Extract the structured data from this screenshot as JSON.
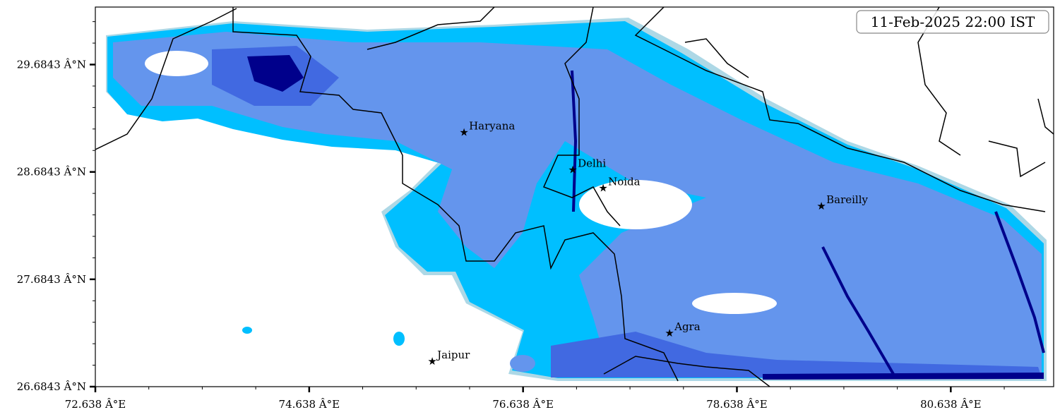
{
  "map": {
    "timestamp_label": "11-Feb-2025 22:00 IST",
    "extent": {
      "lon": [
        72.638,
        81.6
      ],
      "lat": [
        26.6843,
        30.22
      ]
    },
    "x_ticks": [
      {
        "value": 72.638,
        "label": "72.638 Â°E"
      },
      {
        "value": 74.638,
        "label": "74.638 Â°E"
      },
      {
        "value": 76.638,
        "label": "76.638 Â°E"
      },
      {
        "value": 78.638,
        "label": "78.638 Â°E"
      },
      {
        "value": 80.638,
        "label": "80.638 Â°E"
      }
    ],
    "y_ticks": [
      {
        "value": 26.6843,
        "label": "26.6843 Â°N"
      },
      {
        "value": 27.6843,
        "label": "27.6843 Â°N"
      },
      {
        "value": 28.6843,
        "label": "28.6843 Â°N"
      },
      {
        "value": 29.6843,
        "label": "29.6843 Â°N"
      }
    ],
    "minor_tick_step": 0.5,
    "cities": [
      {
        "name": "Haryana",
        "lon": 76.086,
        "lat": 29.053
      },
      {
        "name": "Delhi",
        "lon": 77.103,
        "lat": 28.704
      },
      {
        "name": "Noida",
        "lon": 77.387,
        "lat": 28.533
      },
      {
        "name": "Bareilly",
        "lon": 79.428,
        "lat": 28.368
      },
      {
        "name": "Agra",
        "lon": 78.008,
        "lat": 27.184
      },
      {
        "name": "Jaipur",
        "lon": 75.789,
        "lat": 26.921
      }
    ],
    "fill_colors": [
      "#add8e6",
      "#00bfff",
      "#6495ed",
      "#4169e1",
      "#00008b"
    ]
  }
}
